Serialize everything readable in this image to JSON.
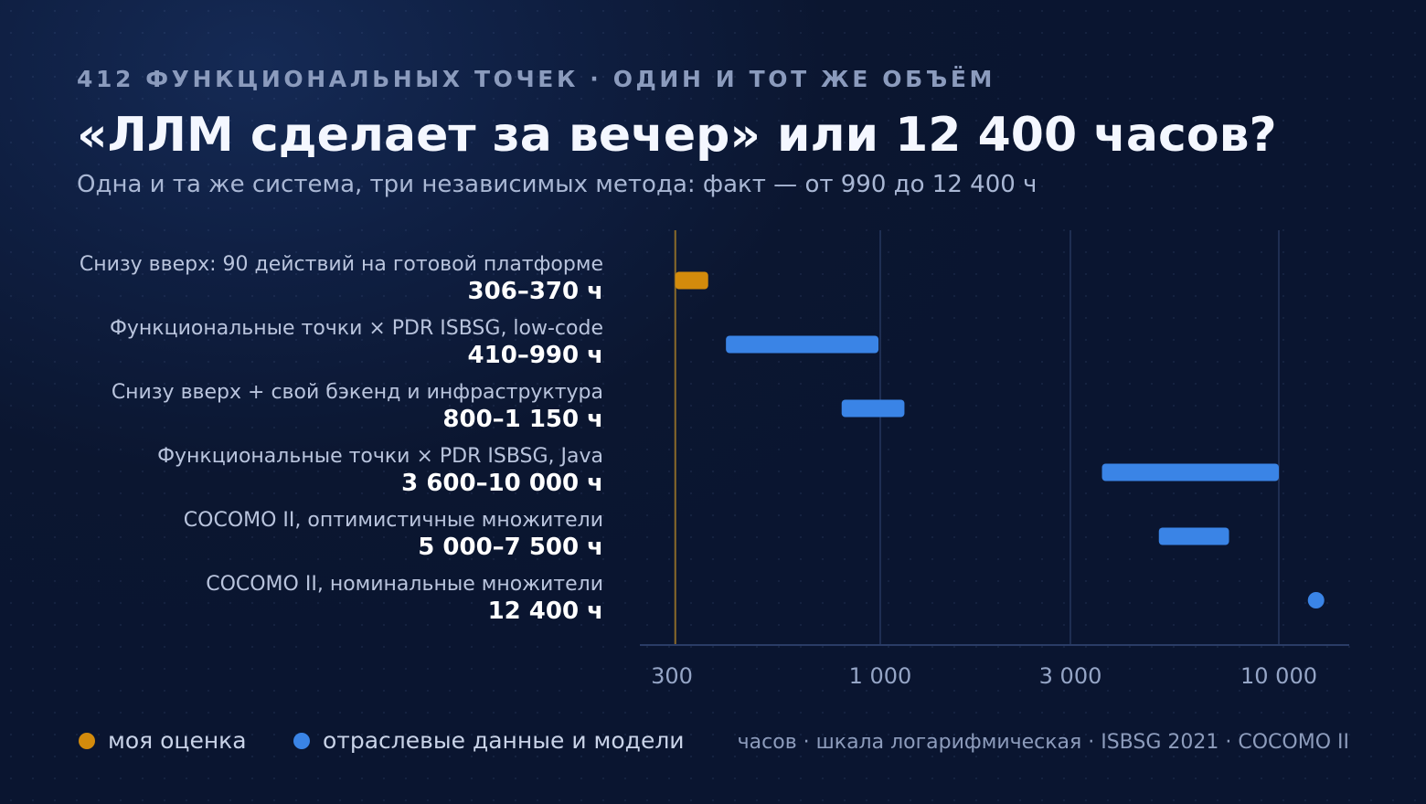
{
  "header": {
    "kicker": "412 ФУНКЦИОНАЛЬНЫХ ТОЧЕК · ОДИН И ТОТ ЖЕ ОБЪЁМ",
    "title": "«ЛЛМ сделает за вечер» или 12 400 часов?",
    "subtitle": "Одна и та же система, три независимых метода: факт — от 990 до 12 400 ч"
  },
  "colors": {
    "mine": "#d38b0c",
    "industry": "#3a84e6",
    "grid": "#26375e",
    "axis": "#2a3c66",
    "reference_line": "#8a6a2a"
  },
  "legend": {
    "mine_label": "моя оценка",
    "industry_label": "отраслевые данные и модели"
  },
  "footnote": "часов · шкала логарифмическая · ISBSG 2021 · COCOMO II",
  "chart_data": {
    "type": "range-bar",
    "scale": "log",
    "xlim": [
      270,
      14000
    ],
    "x_ticks": [
      300,
      1000,
      3000,
      10000
    ],
    "x_tick_labels": [
      "300",
      "1 000",
      "3 000",
      "10 000"
    ],
    "reference_line": 306,
    "grid": true,
    "legend_position": "bottom-left",
    "rows": [
      {
        "label": "Снизу вверх: 90 действий на готовой платформе",
        "value_label": "306–370 ч",
        "min": 306,
        "max": 370,
        "group": "mine"
      },
      {
        "label": "Функциональные точки × PDR ISBSG, low-code",
        "value_label": "410–990 ч",
        "min": 410,
        "max": 990,
        "group": "industry"
      },
      {
        "label": "Снизу вверх + свой бэкенд и инфраструктура",
        "value_label": "800–1 150 ч",
        "min": 800,
        "max": 1150,
        "group": "industry"
      },
      {
        "label": "Функциональные точки × PDR ISBSG, Java",
        "value_label": "3 600–10 000 ч",
        "min": 3600,
        "max": 10000,
        "group": "industry"
      },
      {
        "label": "COCOMO II, оптимистичные множители",
        "value_label": "5 000–7 500 ч",
        "min": 5000,
        "max": 7500,
        "group": "industry"
      },
      {
        "label": "COCOMO II, номинальные множители",
        "value_label": "12 400 ч",
        "min": 12400,
        "max": 12400,
        "group": "industry"
      }
    ]
  }
}
